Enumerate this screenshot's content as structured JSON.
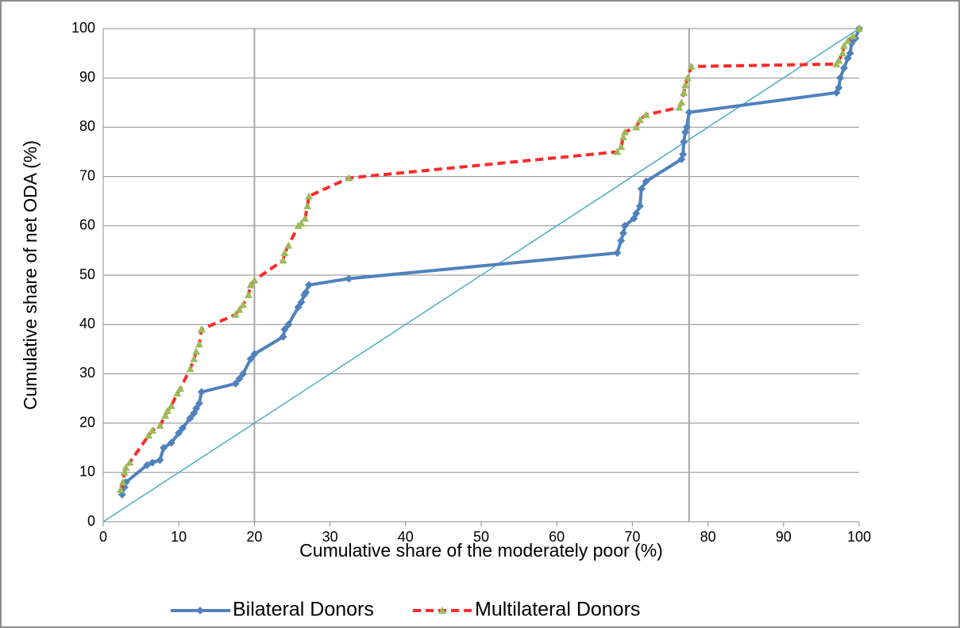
{
  "chart_data": {
    "type": "line",
    "xlabel": "Cumulative share of the moderately poor (%)",
    "ylabel": "Cumulative share of  net ODA (%)",
    "xlim": [
      0,
      100
    ],
    "ylim": [
      0,
      100
    ],
    "xticks": [
      0,
      10,
      20,
      30,
      40,
      50,
      60,
      70,
      80,
      90,
      100
    ],
    "yticks": [
      0,
      10,
      20,
      30,
      40,
      50,
      60,
      70,
      80,
      90,
      100
    ],
    "grid": true,
    "vlines": [
      20,
      77.5
    ],
    "legend": "bottom",
    "reference_line": {
      "x": [
        0,
        100
      ],
      "values": [
        0,
        100
      ],
      "color": "#4bacc6"
    },
    "series": [
      {
        "name": "Bilateral Donors",
        "color": "#4f81bd",
        "marker": "diamond",
        "dash": false,
        "x": [
          2.5,
          2.8,
          3,
          5.8,
          6.5,
          7.5,
          8,
          9,
          10,
          10.5,
          11.5,
          12,
          12.3,
          12.7,
          13,
          17.5,
          18,
          18.5,
          19.5,
          20,
          23.8,
          24,
          24.5,
          25.8,
          26.2,
          26.6,
          26.8,
          27.2,
          32.5,
          68,
          68.5,
          68.8,
          69,
          70.2,
          70.5,
          71,
          71.2,
          71.8,
          76.5,
          76.7,
          76.8,
          77,
          77.2,
          77.5,
          97,
          97.3,
          97.5,
          98,
          98.5,
          98.8,
          99,
          99.5,
          100
        ],
        "values": [
          5.5,
          7,
          8,
          11.5,
          12,
          12.5,
          15,
          16,
          18,
          19,
          21,
          22,
          23,
          24,
          26.3,
          28,
          29,
          30,
          33,
          34,
          37.5,
          39,
          40,
          43.5,
          44.5,
          46,
          46.5,
          48,
          49.3,
          54.5,
          57,
          58.5,
          60,
          61.5,
          62.5,
          64,
          67.5,
          69,
          73.5,
          74.5,
          77,
          79,
          80,
          83,
          87,
          88,
          90,
          92,
          94,
          95,
          97,
          98,
          100
        ]
      },
      {
        "name": "Multilateral Donors",
        "color": "#ff2a2a",
        "marker_color": "#9bbb59",
        "marker": "triangle",
        "dash": true,
        "x": [
          2.3,
          2.6,
          2.8,
          3,
          3.5,
          6,
          6.5,
          7.5,
          8.2,
          8.5,
          9,
          9.8,
          10.2,
          11.5,
          12,
          12.3,
          12.7,
          13,
          17.5,
          18,
          18.5,
          19.2,
          19.5,
          20,
          23.8,
          24,
          24.5,
          25.8,
          26.2,
          26.7,
          27,
          27.2,
          32.5,
          68,
          68.5,
          68.8,
          69,
          70.5,
          71,
          71.8,
          76.2,
          76.5,
          76.8,
          77,
          77.3,
          77.8,
          97,
          97.3,
          97.8,
          98,
          98.5,
          99.2,
          100
        ],
        "values": [
          6.5,
          8,
          10,
          11,
          12,
          17.5,
          18.5,
          19.5,
          21.5,
          22.5,
          23.5,
          26,
          27,
          31,
          33,
          34.5,
          36,
          39,
          42,
          43,
          44,
          46,
          48,
          49,
          53,
          54.5,
          56,
          60,
          60.5,
          61.5,
          64,
          66,
          69.7,
          75,
          76,
          78,
          79,
          80,
          81.5,
          82.5,
          84,
          85,
          87,
          88.5,
          90,
          92.3,
          92.8,
          93.5,
          95,
          96.5,
          97.5,
          98.5,
          100
        ]
      }
    ]
  }
}
